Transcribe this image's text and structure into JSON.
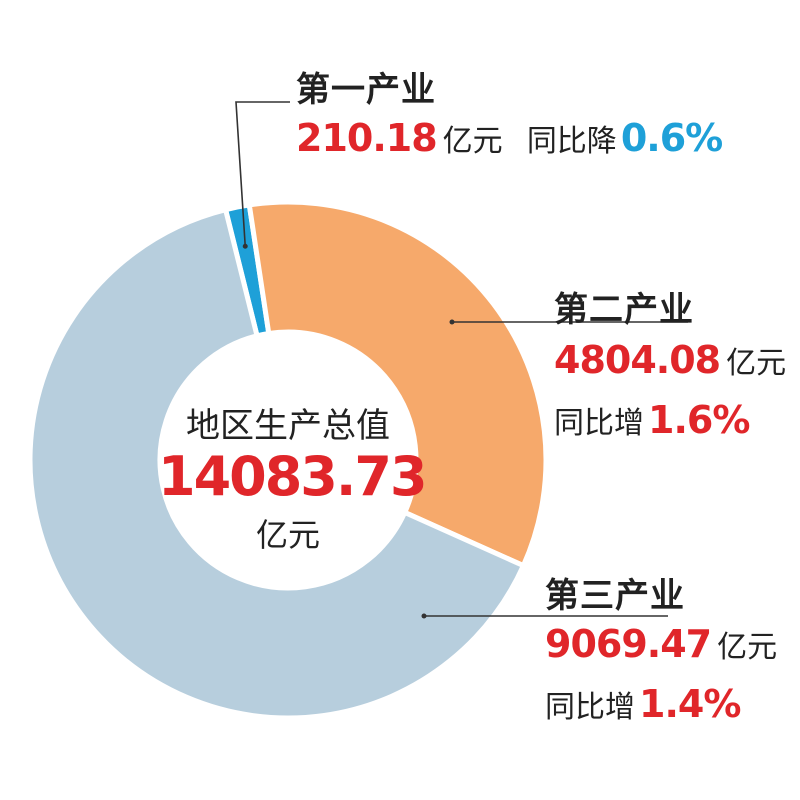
{
  "center": {
    "title": "地区生产总值",
    "value": "14083.73",
    "unit": "亿元"
  },
  "colors": {
    "primary": "#1ea0d8",
    "secondary": "#f6a96b",
    "tertiary": "#b7cedd",
    "red": "#e0262a",
    "blue": "#1ea0d8"
  },
  "chart_data": {
    "type": "pie",
    "title": "",
    "total": 14083.73,
    "unit": "亿元",
    "slices": [
      {
        "label": "第一产业",
        "value": 210.18,
        "change_text": "同比降",
        "change": "0.6%"
      },
      {
        "label": "第二产业",
        "value": 4804.08,
        "change_text": "同比增",
        "change": "1.6%"
      },
      {
        "label": "第三产业",
        "value": 9069.47,
        "change_text": "同比增",
        "change": "1.4%"
      }
    ]
  },
  "labels": {
    "primary": {
      "name": "第一产业",
      "value": "210.18",
      "unit": "亿元",
      "change_text": "同比降",
      "change": "0.6%"
    },
    "secondary": {
      "name": "第二产业",
      "value": "4804.08",
      "unit": "亿元",
      "change_text": "同比增",
      "change": "1.6%"
    },
    "tertiary": {
      "name": "第三产业",
      "value": "9069.47",
      "unit": "亿元",
      "change_text": "同比增",
      "change": "1.4%"
    }
  }
}
